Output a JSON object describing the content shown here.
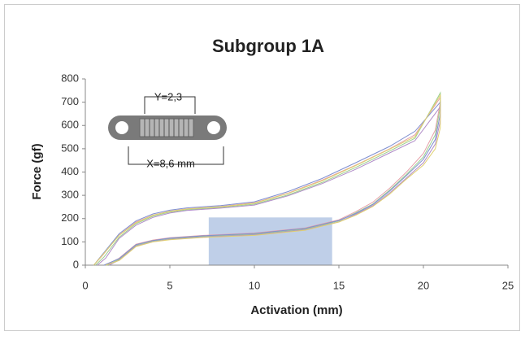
{
  "chart_data": {
    "type": "line",
    "title": "Subgroup 1A",
    "x_label": "Activation (mm)",
    "y_label": "Force (gf)",
    "xlim": [
      0,
      25
    ],
    "xticks": [
      0,
      5,
      10,
      15,
      20,
      25
    ],
    "ylim": [
      0,
      800
    ],
    "yticks": [
      0,
      100,
      200,
      300,
      400,
      500,
      600,
      700,
      800
    ],
    "grid": false,
    "annotations": [
      "Y=2,3",
      "X=8,6 mm"
    ],
    "highlight": {
      "x": [
        7.3,
        14.6
      ],
      "y": [
        0,
        205
      ],
      "color": "#a9bfe0"
    },
    "series": [
      {
        "color": "#e6a0a8",
        "x": [
          0.5,
          1,
          2,
          3,
          4,
          5,
          6,
          8,
          10,
          12,
          14,
          16,
          18,
          19.5,
          21,
          21,
          20.7,
          20,
          19,
          18,
          17,
          16,
          15,
          13,
          10,
          7,
          5,
          4,
          3,
          2.5,
          2,
          1.2
        ],
        "values": [
          0,
          40,
          130,
          185,
          215,
          232,
          242,
          252,
          268,
          310,
          365,
          430,
          500,
          560,
          720,
          700,
          580,
          480,
          400,
          330,
          270,
          230,
          195,
          160,
          138,
          128,
          118,
          108,
          90,
          60,
          30,
          0
        ]
      },
      {
        "color": "#9ccf8f",
        "x": [
          0.6,
          1.1,
          2,
          3,
          4,
          5,
          6,
          8,
          10,
          12,
          14,
          16,
          18,
          19.5,
          21,
          21,
          20.7,
          20,
          19,
          18,
          17,
          16,
          15,
          13,
          10,
          7,
          5,
          4,
          3,
          2.5,
          2,
          1.3
        ],
        "values": [
          0,
          35,
          120,
          178,
          210,
          228,
          238,
          248,
          262,
          302,
          355,
          420,
          490,
          545,
          740,
          680,
          560,
          465,
          390,
          322,
          262,
          225,
          190,
          155,
          133,
          124,
          114,
          104,
          85,
          55,
          25,
          0
        ]
      },
      {
        "color": "#7f8fd0",
        "x": [
          0.5,
          1,
          2,
          3,
          4,
          5,
          6,
          8,
          10,
          12,
          14,
          16,
          18,
          19.5,
          21,
          21,
          20.7,
          20,
          19,
          18,
          17,
          16,
          15,
          13,
          10,
          7,
          5,
          4,
          3,
          2.5,
          2,
          1.1
        ],
        "values": [
          0,
          45,
          135,
          190,
          220,
          236,
          246,
          256,
          272,
          316,
          372,
          440,
          510,
          575,
          700,
          650,
          540,
          455,
          385,
          318,
          260,
          222,
          192,
          158,
          136,
          126,
          116,
          106,
          88,
          58,
          28,
          0
        ]
      },
      {
        "color": "#b08cc8",
        "x": [
          0.7,
          1.2,
          2,
          3,
          4,
          5,
          6,
          8,
          10,
          12,
          14,
          16,
          18,
          19.5,
          21,
          21,
          20.7,
          20,
          19,
          18,
          17,
          16,
          15,
          13,
          10,
          7,
          5,
          4,
          3,
          2.5,
          2,
          1.4
        ],
        "values": [
          0,
          30,
          115,
          172,
          205,
          224,
          235,
          245,
          258,
          298,
          350,
          412,
          482,
          535,
          680,
          620,
          520,
          440,
          375,
          310,
          255,
          218,
          186,
          152,
          130,
          121,
          111,
          101,
          82,
          52,
          22,
          0
        ]
      },
      {
        "color": "#e0d070",
        "x": [
          0.5,
          1,
          2,
          3,
          4,
          5,
          6,
          8,
          10,
          12,
          14,
          16,
          18,
          19.5,
          21,
          21,
          20.7,
          20,
          19,
          18,
          17,
          16,
          15,
          13,
          10,
          7,
          5,
          4,
          3,
          2.5,
          2,
          1.2
        ],
        "values": [
          0,
          42,
          128,
          182,
          214,
          231,
          241,
          251,
          266,
          308,
          362,
          428,
          498,
          552,
          730,
          590,
          500,
          430,
          370,
          305,
          252,
          215,
          185,
          150,
          128,
          119,
          109,
          100,
          80,
          50,
          20,
          0
        ]
      }
    ]
  }
}
